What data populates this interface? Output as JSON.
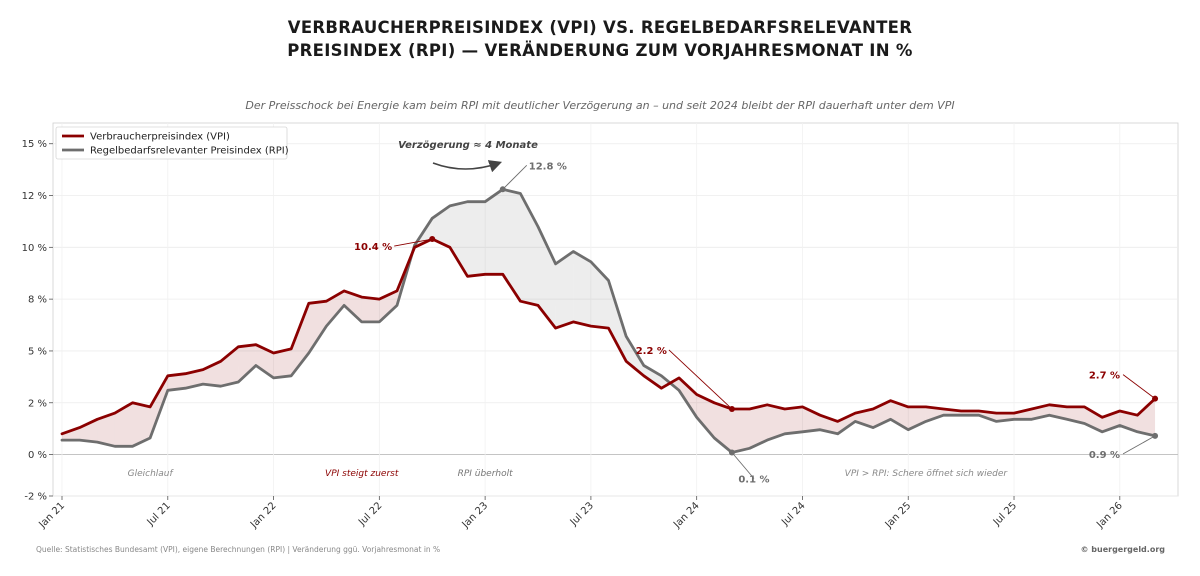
{
  "header": {
    "title_line1": "VERBRAUCHERPREISINDEX (VPI) VS. REGELBEDARFSRELEVANTER",
    "title_line2": "PREISINDEX (RPI) — VERÄNDERUNG ZUM VORJAHRESMONAT IN %",
    "subtitle": "Der Preisschock bei Energie kam beim RPI mit deutlicher Verzögerung an – und seit 2024 bleibt der RPI dauerhaft unter dem VPI"
  },
  "footer": {
    "source": "Quelle: Statistisches Bundesamt (VPI), eigene Berechnungen (RPI) | Veränderung ggü. Vorjahresmonat in %",
    "credit": "© buergergeld.org"
  },
  "chart_data": {
    "type": "line",
    "x_start": "2021-01",
    "x": [
      "Jan 21",
      "Feb 21",
      "Mär 21",
      "Apr 21",
      "Mai 21",
      "Jun 21",
      "Jul 21",
      "Aug 21",
      "Sep 21",
      "Okt 21",
      "Nov 21",
      "Dez 21",
      "Jan 22",
      "Feb 22",
      "Mär 22",
      "Apr 22",
      "Mai 22",
      "Jun 22",
      "Jul 22",
      "Aug 22",
      "Sep 22",
      "Okt 22",
      "Nov 22",
      "Dez 22",
      "Jan 23",
      "Feb 23",
      "Mär 23",
      "Apr 23",
      "Mai 23",
      "Jun 23",
      "Jul 23",
      "Aug 23",
      "Sep 23",
      "Okt 23",
      "Nov 23",
      "Dez 23",
      "Jan 24",
      "Feb 24",
      "Mär 24",
      "Apr 24",
      "Mai 24",
      "Jun 24",
      "Jul 24",
      "Aug 24",
      "Sep 24",
      "Okt 24",
      "Nov 24",
      "Dez 24",
      "Jan 25",
      "Feb 25",
      "Mär 25",
      "Apr 25",
      "Mai 25",
      "Jun 25",
      "Jul 25",
      "Aug 25",
      "Sep 25",
      "Okt 25",
      "Nov 25",
      "Dez 25",
      "Jan 26",
      "Feb 26",
      "Mär 26"
    ],
    "series": [
      {
        "name": "Verbraucherpreisindex (VPI)",
        "color": "#8b0000",
        "values": [
          1.0,
          1.3,
          1.7,
          2.0,
          2.5,
          2.3,
          3.8,
          3.9,
          4.1,
          4.5,
          5.2,
          5.3,
          4.9,
          5.1,
          7.3,
          7.4,
          7.9,
          7.6,
          7.5,
          7.9,
          10.0,
          10.4,
          10.0,
          8.6,
          8.7,
          8.7,
          7.4,
          7.2,
          6.1,
          6.4,
          6.2,
          6.1,
          4.5,
          3.8,
          3.2,
          3.7,
          2.9,
          2.5,
          2.2,
          2.2,
          2.4,
          2.2,
          2.3,
          1.9,
          1.6,
          2.0,
          2.2,
          2.6,
          2.3,
          2.3,
          2.2,
          2.1,
          2.1,
          2.0,
          2.0,
          2.2,
          2.4,
          2.3,
          2.3,
          1.8,
          2.1,
          1.9,
          2.7
        ]
      },
      {
        "name": "Regelbedarfsrelevanter Preisindex (RPI)",
        "color": "#6e6e6e",
        "values": [
          0.7,
          0.7,
          0.6,
          0.4,
          0.4,
          0.8,
          3.1,
          3.2,
          3.4,
          3.3,
          3.5,
          4.3,
          3.7,
          3.8,
          4.9,
          6.2,
          7.2,
          6.4,
          6.4,
          7.2,
          10.1,
          11.4,
          12.0,
          12.2,
          12.2,
          12.8,
          12.6,
          11.0,
          9.2,
          9.8,
          9.3,
          8.4,
          5.7,
          4.3,
          3.8,
          3.1,
          1.8,
          0.8,
          0.1,
          0.3,
          0.7,
          1.0,
          1.1,
          1.2,
          1.0,
          1.6,
          1.3,
          1.7,
          1.2,
          1.6,
          1.9,
          1.9,
          1.9,
          1.6,
          1.7,
          1.7,
          1.9,
          1.7,
          1.5,
          1.1,
          1.4,
          1.1,
          0.9
        ]
      }
    ],
    "ylim": [
      -2,
      16
    ],
    "yticks": [
      {
        "value": -2,
        "label": "-2 %"
      },
      {
        "value": 0,
        "label": "0 %"
      },
      {
        "value": 2.5,
        "label": "2 %"
      },
      {
        "value": 5,
        "label": "5 %"
      },
      {
        "value": 7.5,
        "label": "8 %"
      },
      {
        "value": 10,
        "label": "10 %"
      },
      {
        "value": 12.5,
        "label": "12 %"
      },
      {
        "value": 15,
        "label": "15 %"
      }
    ],
    "xticks": [
      {
        "index": 0,
        "label": "Jan 21"
      },
      {
        "index": 6,
        "label": "Jul 21"
      },
      {
        "index": 12,
        "label": "Jan 22"
      },
      {
        "index": 18,
        "label": "Jul 22"
      },
      {
        "index": 24,
        "label": "Jan 23"
      },
      {
        "index": 30,
        "label": "Jul 23"
      },
      {
        "index": 36,
        "label": "Jan 24"
      },
      {
        "index": 42,
        "label": "Jul 24"
      },
      {
        "index": 48,
        "label": "Jan 25"
      },
      {
        "index": 54,
        "label": "Jul 25"
      },
      {
        "index": 60,
        "label": "Jan 26"
      }
    ],
    "grid": true,
    "legend_position": "top-left",
    "annotations": [
      {
        "text": "10.4 %",
        "series": 0,
        "index": 21
      },
      {
        "text": "12.8 %",
        "series": 1,
        "index": 25
      },
      {
        "text": "2.2 %",
        "series": 0,
        "index": 38
      },
      {
        "text": "0.1 %",
        "series": 1,
        "index": 38
      },
      {
        "text": "2.7 %",
        "series": 0,
        "index": 62
      },
      {
        "text": "0.9 %",
        "series": 1,
        "index": 62
      },
      {
        "text": "Verzögerung ≈ 4 Monate"
      }
    ],
    "phases": [
      {
        "text": "Gleichlauf",
        "index": 5
      },
      {
        "text": "VPI steigt zuerst",
        "index": 17
      },
      {
        "text": "RPI überholt",
        "index": 24
      },
      {
        "text": "VPI > RPI: Schere öffnet sich wieder",
        "index": 49
      }
    ]
  }
}
